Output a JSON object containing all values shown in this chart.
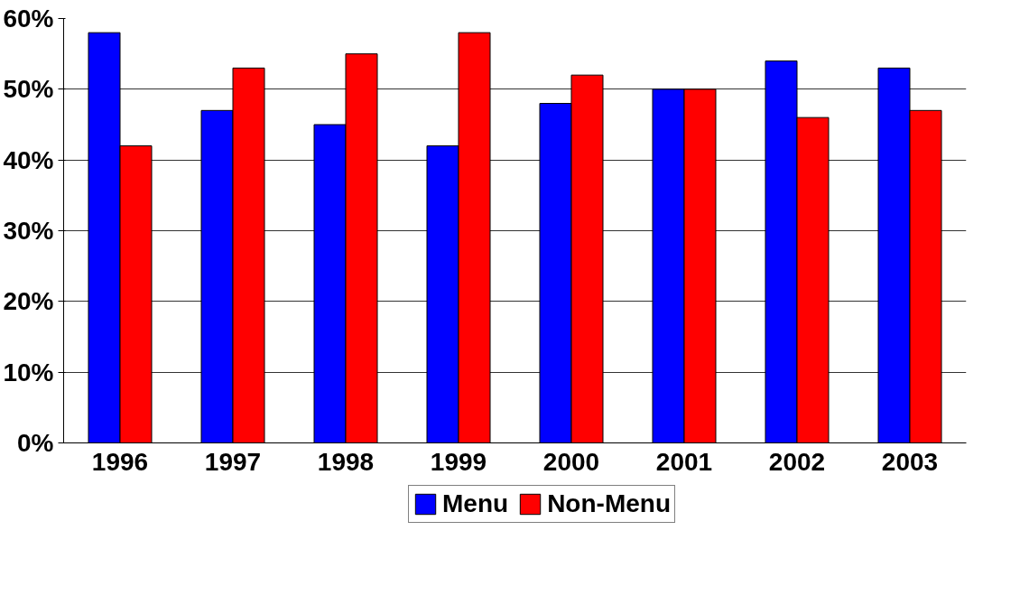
{
  "chart_data": {
    "type": "bar",
    "categories": [
      "1996",
      "1997",
      "1998",
      "1999",
      "2000",
      "2001",
      "2002",
      "2003"
    ],
    "series": [
      {
        "name": "Menu",
        "color": "#0000ff",
        "values": [
          58,
          47,
          45,
          42,
          48,
          50,
          54,
          53
        ]
      },
      {
        "name": "Non-Menu",
        "color": "#ff0000",
        "values": [
          42,
          53,
          55,
          58,
          52,
          50,
          46,
          47
        ]
      }
    ],
    "ylim": [
      0,
      60
    ],
    "yticks": [
      {
        "value": 0,
        "label": "0%"
      },
      {
        "value": 10,
        "label": "10%"
      },
      {
        "value": 20,
        "label": "20%"
      },
      {
        "value": 30,
        "label": "30%"
      },
      {
        "value": 40,
        "label": "40%"
      },
      {
        "value": 50,
        "label": "50%"
      },
      {
        "value": 60,
        "label": "60%"
      }
    ],
    "grid": "y",
    "legend": "bottom"
  }
}
